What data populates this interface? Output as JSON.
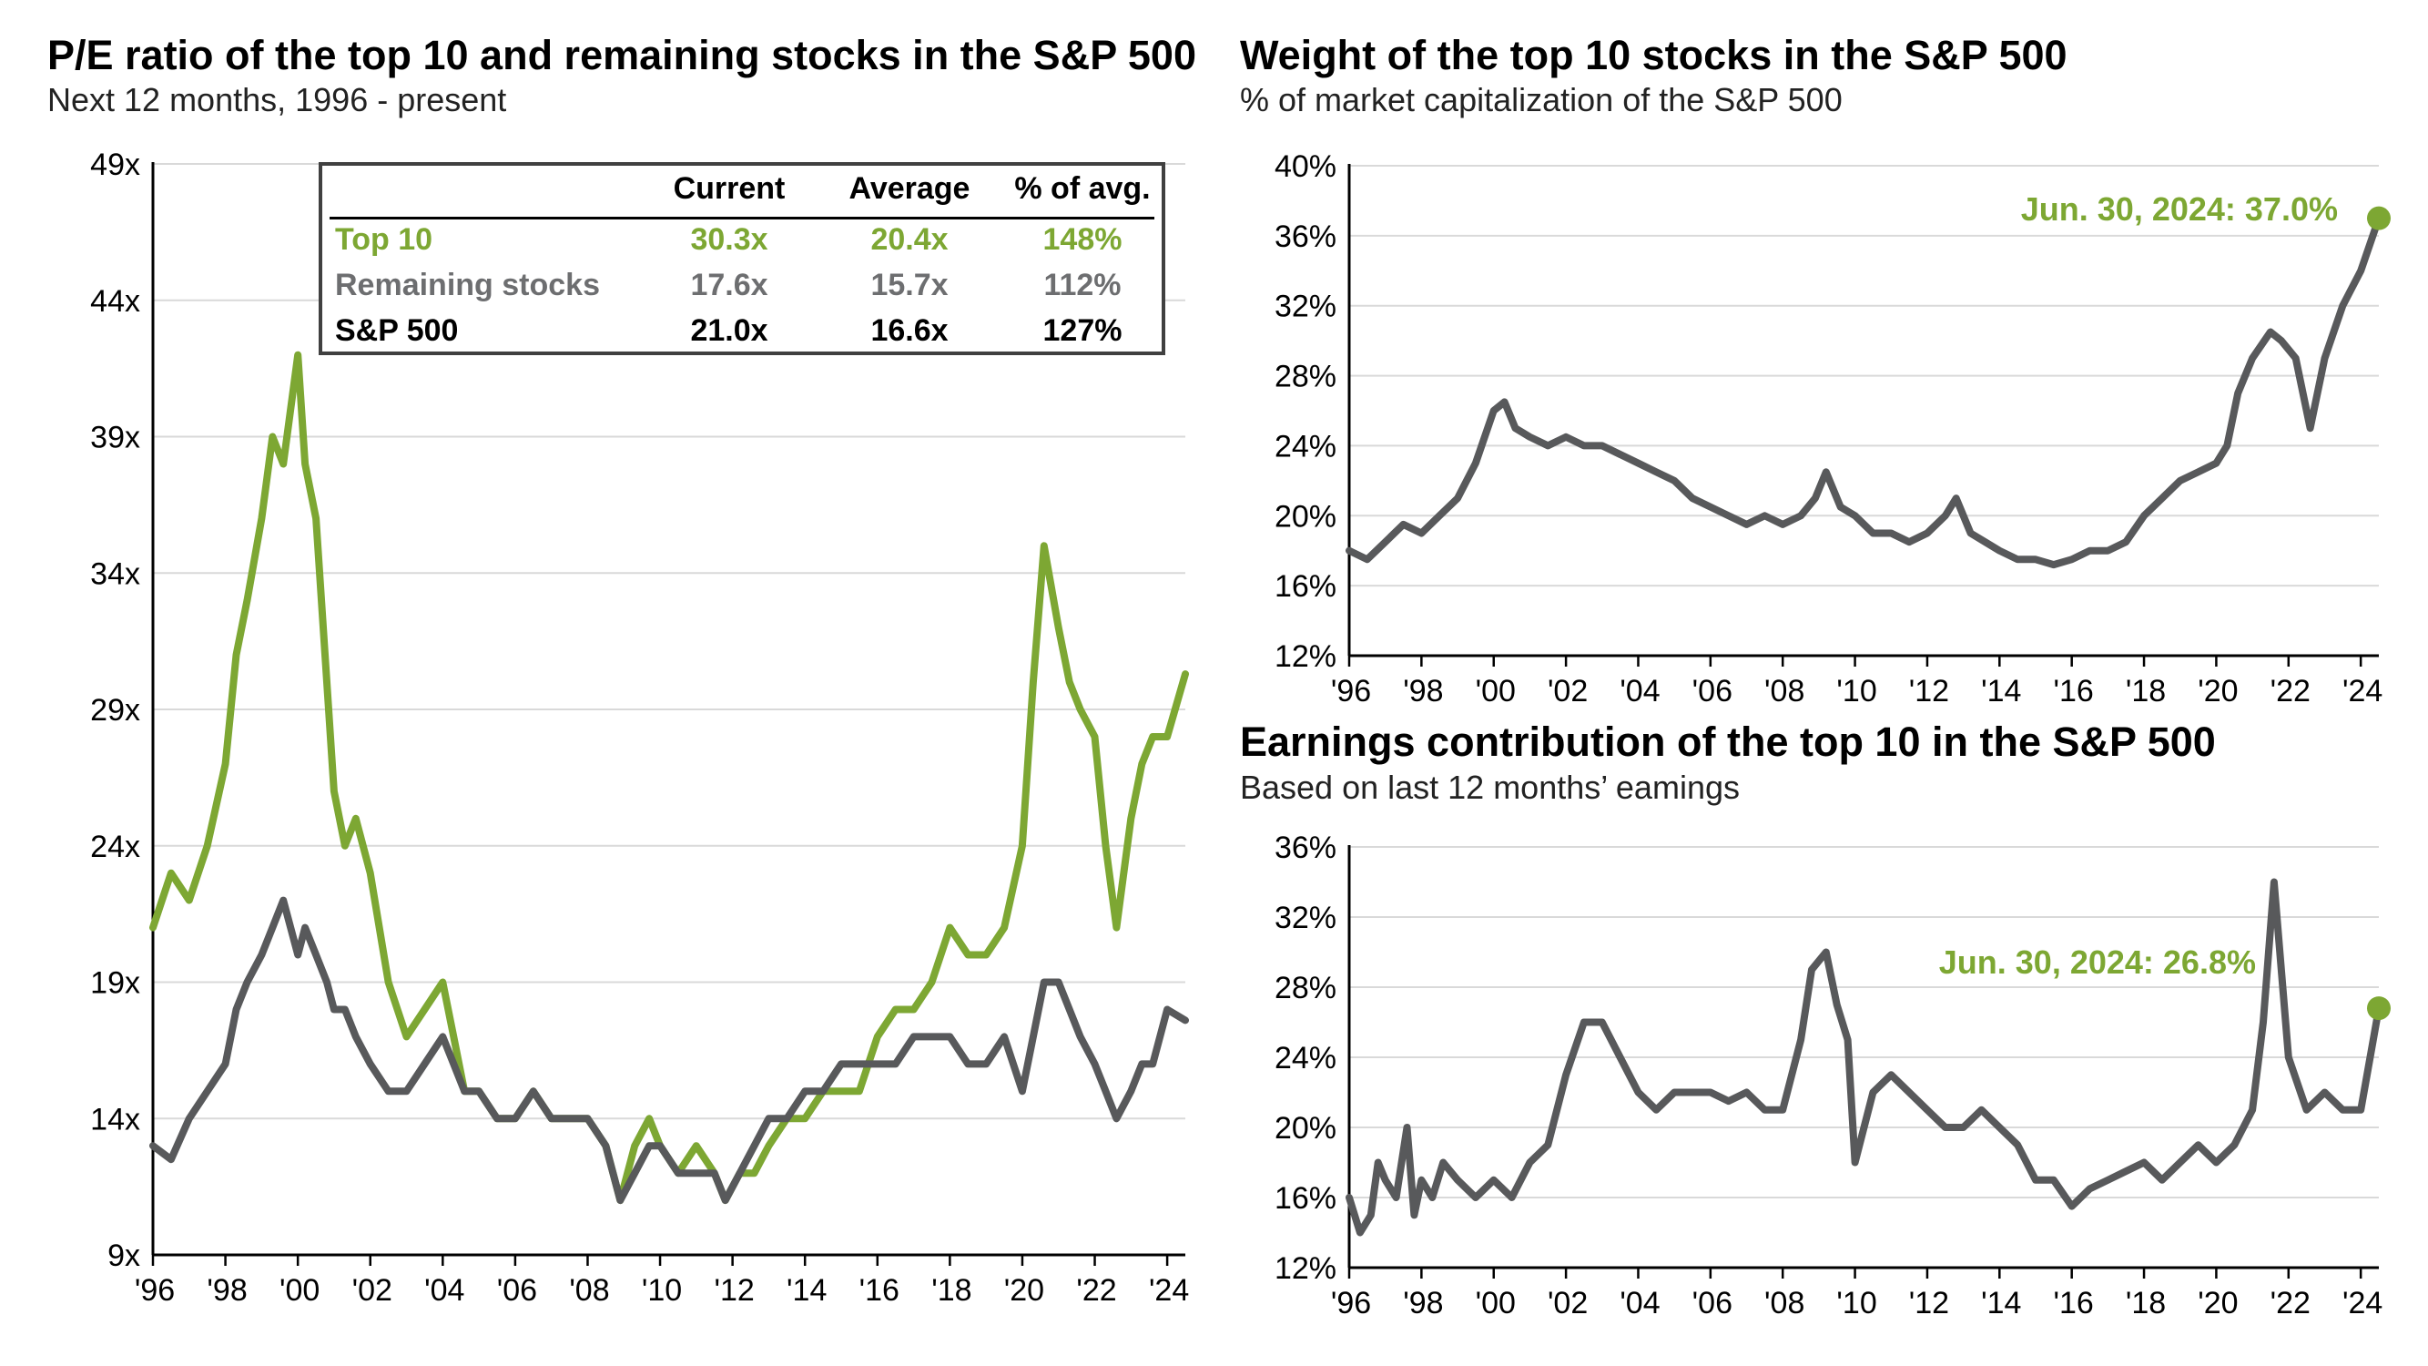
{
  "left_title": "P/E ratio of the top 10 and remaining stocks in the S&P 500",
  "left_subtitle": "Next 12 months, 1996 - present",
  "right_top_title": "Weight of the top 10 stocks in the S&P 500",
  "right_top_subtitle": "% of market capitalization of the S&P 500",
  "right_bottom_title": "Earnings contribution of the top 10 in the S&P 500",
  "right_bottom_subtitle": "Based on last 12 months’ eamings",
  "colors": {
    "green": "#7DA733",
    "gray": "#58595B"
  },
  "table": {
    "headers": [
      "Current",
      "Average",
      "% of avg."
    ],
    "rows": [
      {
        "name": "Top 10",
        "current": "30.3x",
        "average": "20.4x",
        "pct": "148%",
        "color": "#7DA733"
      },
      {
        "name": "Remaining stocks",
        "current": "17.6x",
        "average": "15.7x",
        "pct": "112%",
        "color": "#6D6E70"
      },
      {
        "name": "S&P 500",
        "current": "21.0x",
        "average": "16.6x",
        "pct": "127%",
        "color": "#000000"
      }
    ]
  },
  "chart_data": [
    {
      "type": "line",
      "title": "P/E ratio of the top 10 and remaining stocks in the S&P 500",
      "subtitle": "Next 12 months, 1996 - present",
      "xlim": [
        1996,
        2024.5
      ],
      "ylim": [
        9,
        49
      ],
      "x_ticks": [
        "'96",
        "'98",
        "'00",
        "'02",
        "'04",
        "'06",
        "'08",
        "'10",
        "'12",
        "'14",
        "'16",
        "'18",
        "'20",
        "'22",
        "'24"
      ],
      "y_ticks": [
        "9x",
        "14x",
        "19x",
        "24x",
        "29x",
        "34x",
        "39x",
        "44x",
        "49x"
      ],
      "grid": true,
      "series": [
        {
          "name": "Top 10",
          "color": "#7DA733",
          "x": [
            1996,
            1996.5,
            1997,
            1997.5,
            1998,
            1998.3,
            1998.6,
            1999,
            1999.3,
            1999.6,
            2000,
            2000.2,
            2000.5,
            2000.8,
            2001,
            2001.3,
            2001.6,
            2002,
            2002.5,
            2003,
            2003.5,
            2004,
            2004.3,
            2004.6,
            2005,
            2005.5,
            2006,
            2006.5,
            2007,
            2007.5,
            2008,
            2008.5,
            2008.9,
            2009.3,
            2009.7,
            2010,
            2010.5,
            2011,
            2011.5,
            2011.8,
            2012.2,
            2012.6,
            2013,
            2013.5,
            2014,
            2014.5,
            2015,
            2015.5,
            2016,
            2016.5,
            2017,
            2017.5,
            2018,
            2018.5,
            2019,
            2019.5,
            2020,
            2020.3,
            2020.6,
            2021,
            2021.3,
            2021.6,
            2022,
            2022.3,
            2022.6,
            2023,
            2023.3,
            2023.6,
            2024,
            2024.5
          ],
          "y": [
            21,
            23,
            22,
            24,
            27,
            31,
            33,
            36,
            39,
            38,
            42,
            38,
            36,
            30,
            26,
            24,
            25,
            23,
            19,
            17,
            18,
            19,
            17,
            15,
            15,
            14,
            14,
            15,
            14,
            14,
            14,
            13,
            11,
            13,
            14,
            13,
            12,
            13,
            12,
            11,
            12,
            12,
            13,
            14,
            14,
            15,
            15,
            15,
            17,
            18,
            18,
            19,
            21,
            20,
            20,
            21,
            24,
            30,
            35,
            32,
            30,
            29,
            28,
            24,
            21,
            25,
            27,
            28,
            28,
            30.3
          ]
        },
        {
          "name": "Remaining stocks",
          "color": "#58595B",
          "x": [
            1996,
            1996.5,
            1997,
            1997.5,
            1998,
            1998.3,
            1998.6,
            1999,
            1999.3,
            1999.6,
            2000,
            2000.2,
            2000.5,
            2000.8,
            2001,
            2001.3,
            2001.6,
            2002,
            2002.5,
            2003,
            2003.5,
            2004,
            2004.3,
            2004.6,
            2005,
            2005.5,
            2006,
            2006.5,
            2007,
            2007.5,
            2008,
            2008.5,
            2008.9,
            2009.3,
            2009.7,
            2010,
            2010.5,
            2011,
            2011.5,
            2011.8,
            2012.2,
            2012.6,
            2013,
            2013.5,
            2014,
            2014.5,
            2015,
            2015.5,
            2016,
            2016.5,
            2017,
            2017.5,
            2018,
            2018.5,
            2019,
            2019.5,
            2020,
            2020.3,
            2020.6,
            2021,
            2021.3,
            2021.6,
            2022,
            2022.3,
            2022.6,
            2023,
            2023.3,
            2023.6,
            2024,
            2024.5
          ],
          "y": [
            13,
            12.5,
            14,
            15,
            16,
            18,
            19,
            20,
            21,
            22,
            20,
            21,
            20,
            19,
            18,
            18,
            17,
            16,
            15,
            15,
            16,
            17,
            16,
            15,
            15,
            14,
            14,
            15,
            14,
            14,
            14,
            13,
            11,
            12,
            13,
            13,
            12,
            12,
            12,
            11,
            12,
            13,
            14,
            14,
            15,
            15,
            16,
            16,
            16,
            16,
            17,
            17,
            17,
            16,
            16,
            17,
            15,
            17,
            19,
            19,
            18,
            17,
            16,
            15,
            14,
            15,
            16,
            16,
            18,
            17.6
          ]
        }
      ]
    },
    {
      "type": "line",
      "title": "Weight of the top 10 stocks in the S&P 500",
      "subtitle": "% of market capitalization of the S&P 500",
      "xlim": [
        1996,
        2024.5
      ],
      "ylim": [
        12,
        40
      ],
      "x_ticks": [
        "'96",
        "'98",
        "'00",
        "'02",
        "'04",
        "'06",
        "'08",
        "'10",
        "'12",
        "'14",
        "'16",
        "'18",
        "'20",
        "'22",
        "'24"
      ],
      "y_ticks": [
        "12%",
        "16%",
        "20%",
        "24%",
        "28%",
        "32%",
        "36%",
        "40%"
      ],
      "grid": true,
      "annotation": "Jun. 30, 2024: 37.0%",
      "series": [
        {
          "color": "#58595B",
          "x": [
            1996,
            1996.5,
            1997,
            1997.5,
            1998,
            1998.5,
            1999,
            1999.5,
            2000,
            2000.3,
            2000.6,
            2001,
            2001.5,
            2002,
            2002.5,
            2003,
            2003.5,
            2004,
            2004.5,
            2005,
            2005.5,
            2006,
            2006.5,
            2007,
            2007.5,
            2008,
            2008.5,
            2008.9,
            2009.2,
            2009.6,
            2010,
            2010.5,
            2011,
            2011.5,
            2012,
            2012.5,
            2012.8,
            2013.2,
            2013.6,
            2014,
            2014.5,
            2015,
            2015.5,
            2016,
            2016.5,
            2017,
            2017.5,
            2018,
            2018.5,
            2019,
            2019.5,
            2020,
            2020.3,
            2020.6,
            2021,
            2021.5,
            2021.8,
            2022.2,
            2022.6,
            2023,
            2023.5,
            2024,
            2024.5
          ],
          "y": [
            18,
            17.5,
            18.5,
            19.5,
            19,
            20,
            21,
            23,
            26,
            26.5,
            25,
            24.5,
            24,
            24.5,
            24,
            24,
            23.5,
            23,
            22.5,
            22,
            21,
            20.5,
            20,
            19.5,
            20,
            19.5,
            20,
            21,
            22.5,
            20.5,
            20,
            19,
            19,
            18.5,
            19,
            20,
            21,
            19,
            18.5,
            18,
            17.5,
            17.5,
            17.2,
            17.5,
            18,
            18,
            18.5,
            20,
            21,
            22,
            22.5,
            23,
            24,
            27,
            29,
            30.5,
            30,
            29,
            25,
            29,
            32,
            34,
            37
          ]
        }
      ]
    },
    {
      "type": "line",
      "title": "Earnings contribution of the top 10 in the S&P 500",
      "subtitle": "Based on last 12 months’ eamings",
      "xlim": [
        1996,
        2024.5
      ],
      "ylim": [
        12,
        36
      ],
      "x_ticks": [
        "'96",
        "'98",
        "'00",
        "'02",
        "'04",
        "'06",
        "'08",
        "'10",
        "'12",
        "'14",
        "'16",
        "'18",
        "'20",
        "'22",
        "'24"
      ],
      "y_ticks": [
        "12%",
        "16%",
        "20%",
        "24%",
        "28%",
        "32%",
        "36%"
      ],
      "grid": true,
      "annotation": "Jun. 30, 2024: 26.8%",
      "series": [
        {
          "color": "#58595B",
          "x": [
            1996,
            1996.3,
            1996.6,
            1996.8,
            1997,
            1997.3,
            1997.6,
            1997.8,
            1998,
            1998.3,
            1998.6,
            1999,
            1999.5,
            2000,
            2000.5,
            2001,
            2001.5,
            2002,
            2002.5,
            2003,
            2003.5,
            2004,
            2004.5,
            2005,
            2005.5,
            2006,
            2006.5,
            2007,
            2007.5,
            2008,
            2008.5,
            2008.8,
            2009.2,
            2009.5,
            2009.8,
            2010,
            2010.5,
            2011,
            2011.5,
            2012,
            2012.5,
            2013,
            2013.5,
            2014,
            2014.5,
            2015,
            2015.5,
            2016,
            2016.5,
            2017,
            2017.5,
            2018,
            2018.5,
            2019,
            2019.5,
            2020,
            2020.5,
            2021,
            2021.3,
            2021.6,
            2022,
            2022.5,
            2023,
            2023.5,
            2024,
            2024.5
          ],
          "y": [
            16,
            14,
            15,
            18,
            17,
            16,
            20,
            15,
            17,
            16,
            18,
            17,
            16,
            17,
            16,
            18,
            19,
            23,
            26,
            26,
            24,
            22,
            21,
            22,
            22,
            22,
            21.5,
            22,
            21,
            21,
            25,
            29,
            30,
            27,
            25,
            18,
            22,
            23,
            22,
            21,
            20,
            20,
            21,
            20,
            19,
            17,
            17,
            15.5,
            16.5,
            17,
            17.5,
            18,
            17,
            18,
            19,
            18,
            19,
            21,
            26,
            34,
            24,
            21,
            22,
            21,
            21,
            26.8
          ]
        }
      ]
    }
  ]
}
